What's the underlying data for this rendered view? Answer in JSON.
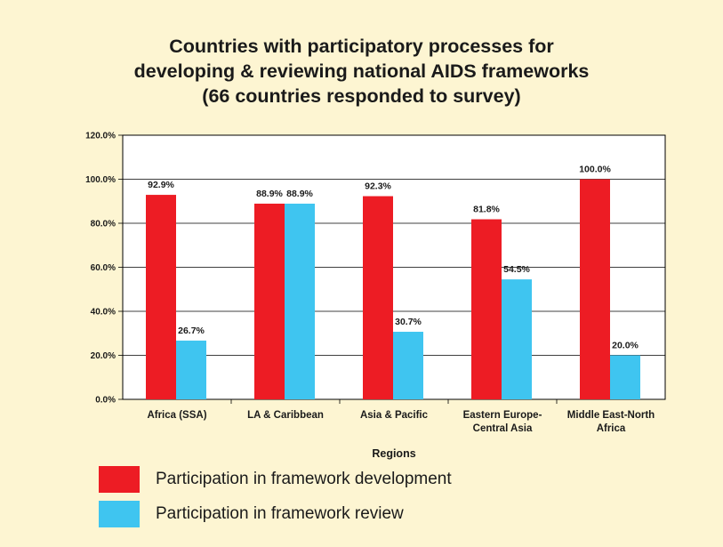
{
  "chart_data": {
    "type": "bar",
    "title": "Countries with participatory processes for\ndeveloping & reviewing  national AIDS frameworks\n(66 countries responded to survey)",
    "xlabel": "Regions",
    "ylabel": "",
    "categories": [
      "Africa (SSA)",
      "LA & Caribbean",
      "Asia & Pacific",
      "Eastern Europe-\nCentral Asia",
      "Middle East-North\nAfrica"
    ],
    "ylim": [
      0,
      120
    ],
    "yticks": [
      0,
      20,
      40,
      60,
      80,
      100,
      120
    ],
    "ytick_labels": [
      "0.0%",
      "20.0%",
      "40.0%",
      "60.0%",
      "80.0%",
      "100.0%",
      "120.0%"
    ],
    "grid": true,
    "legend_position": "bottom",
    "series": [
      {
        "name": "Participation in framework development",
        "color": "#ed1c24",
        "values": [
          92.9,
          88.9,
          92.3,
          81.8,
          100.0
        ],
        "labels": [
          "92.9%",
          "88.9%",
          "92.3%",
          "81.8%",
          "100.0%"
        ]
      },
      {
        "name": "Participation in framework review",
        "color": "#3fc5f0",
        "values": [
          26.7,
          88.9,
          30.7,
          54.5,
          20.0
        ],
        "labels": [
          "26.7%",
          "88.9%",
          "30.7%",
          "54.5%",
          "20.0%"
        ]
      }
    ]
  }
}
